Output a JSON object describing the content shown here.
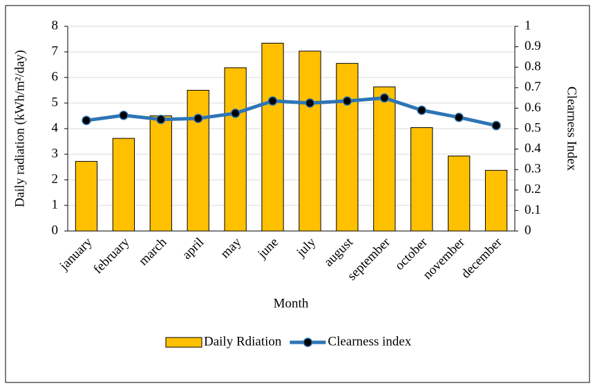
{
  "chart_data": {
    "type": "bar",
    "x_label": "Month",
    "y_label": "Daily radiation (kWh/m²/day)",
    "y2_label": "Clearness Index",
    "categories": [
      "january",
      "february",
      "march",
      "april",
      "may",
      "june",
      "july",
      "august",
      "september",
      "october",
      "november",
      "december"
    ],
    "series": [
      {
        "name": "Daily Rdiation",
        "type": "bar",
        "color": "#ffc000",
        "values": [
          2.72,
          3.62,
          4.5,
          5.5,
          6.38,
          7.34,
          7.03,
          6.55,
          5.63,
          4.04,
          2.93,
          2.37
        ]
      },
      {
        "name": "Clearness index",
        "type": "line",
        "axis": "y2",
        "color": "#2e75b6",
        "values": [
          0.54,
          0.565,
          0.545,
          0.55,
          0.575,
          0.635,
          0.625,
          0.635,
          0.65,
          0.59,
          0.555,
          0.515
        ]
      }
    ],
    "ylim": [
      0,
      8
    ],
    "yticks": [
      0,
      1,
      2,
      3,
      4,
      5,
      6,
      7,
      8
    ],
    "y2lim": [
      0,
      1
    ],
    "y2ticks": [
      0,
      0.1,
      0.2,
      0.3,
      0.4,
      0.5,
      0.6,
      0.7,
      0.8,
      0.9,
      1
    ],
    "grid": true,
    "legend": "bottom"
  }
}
